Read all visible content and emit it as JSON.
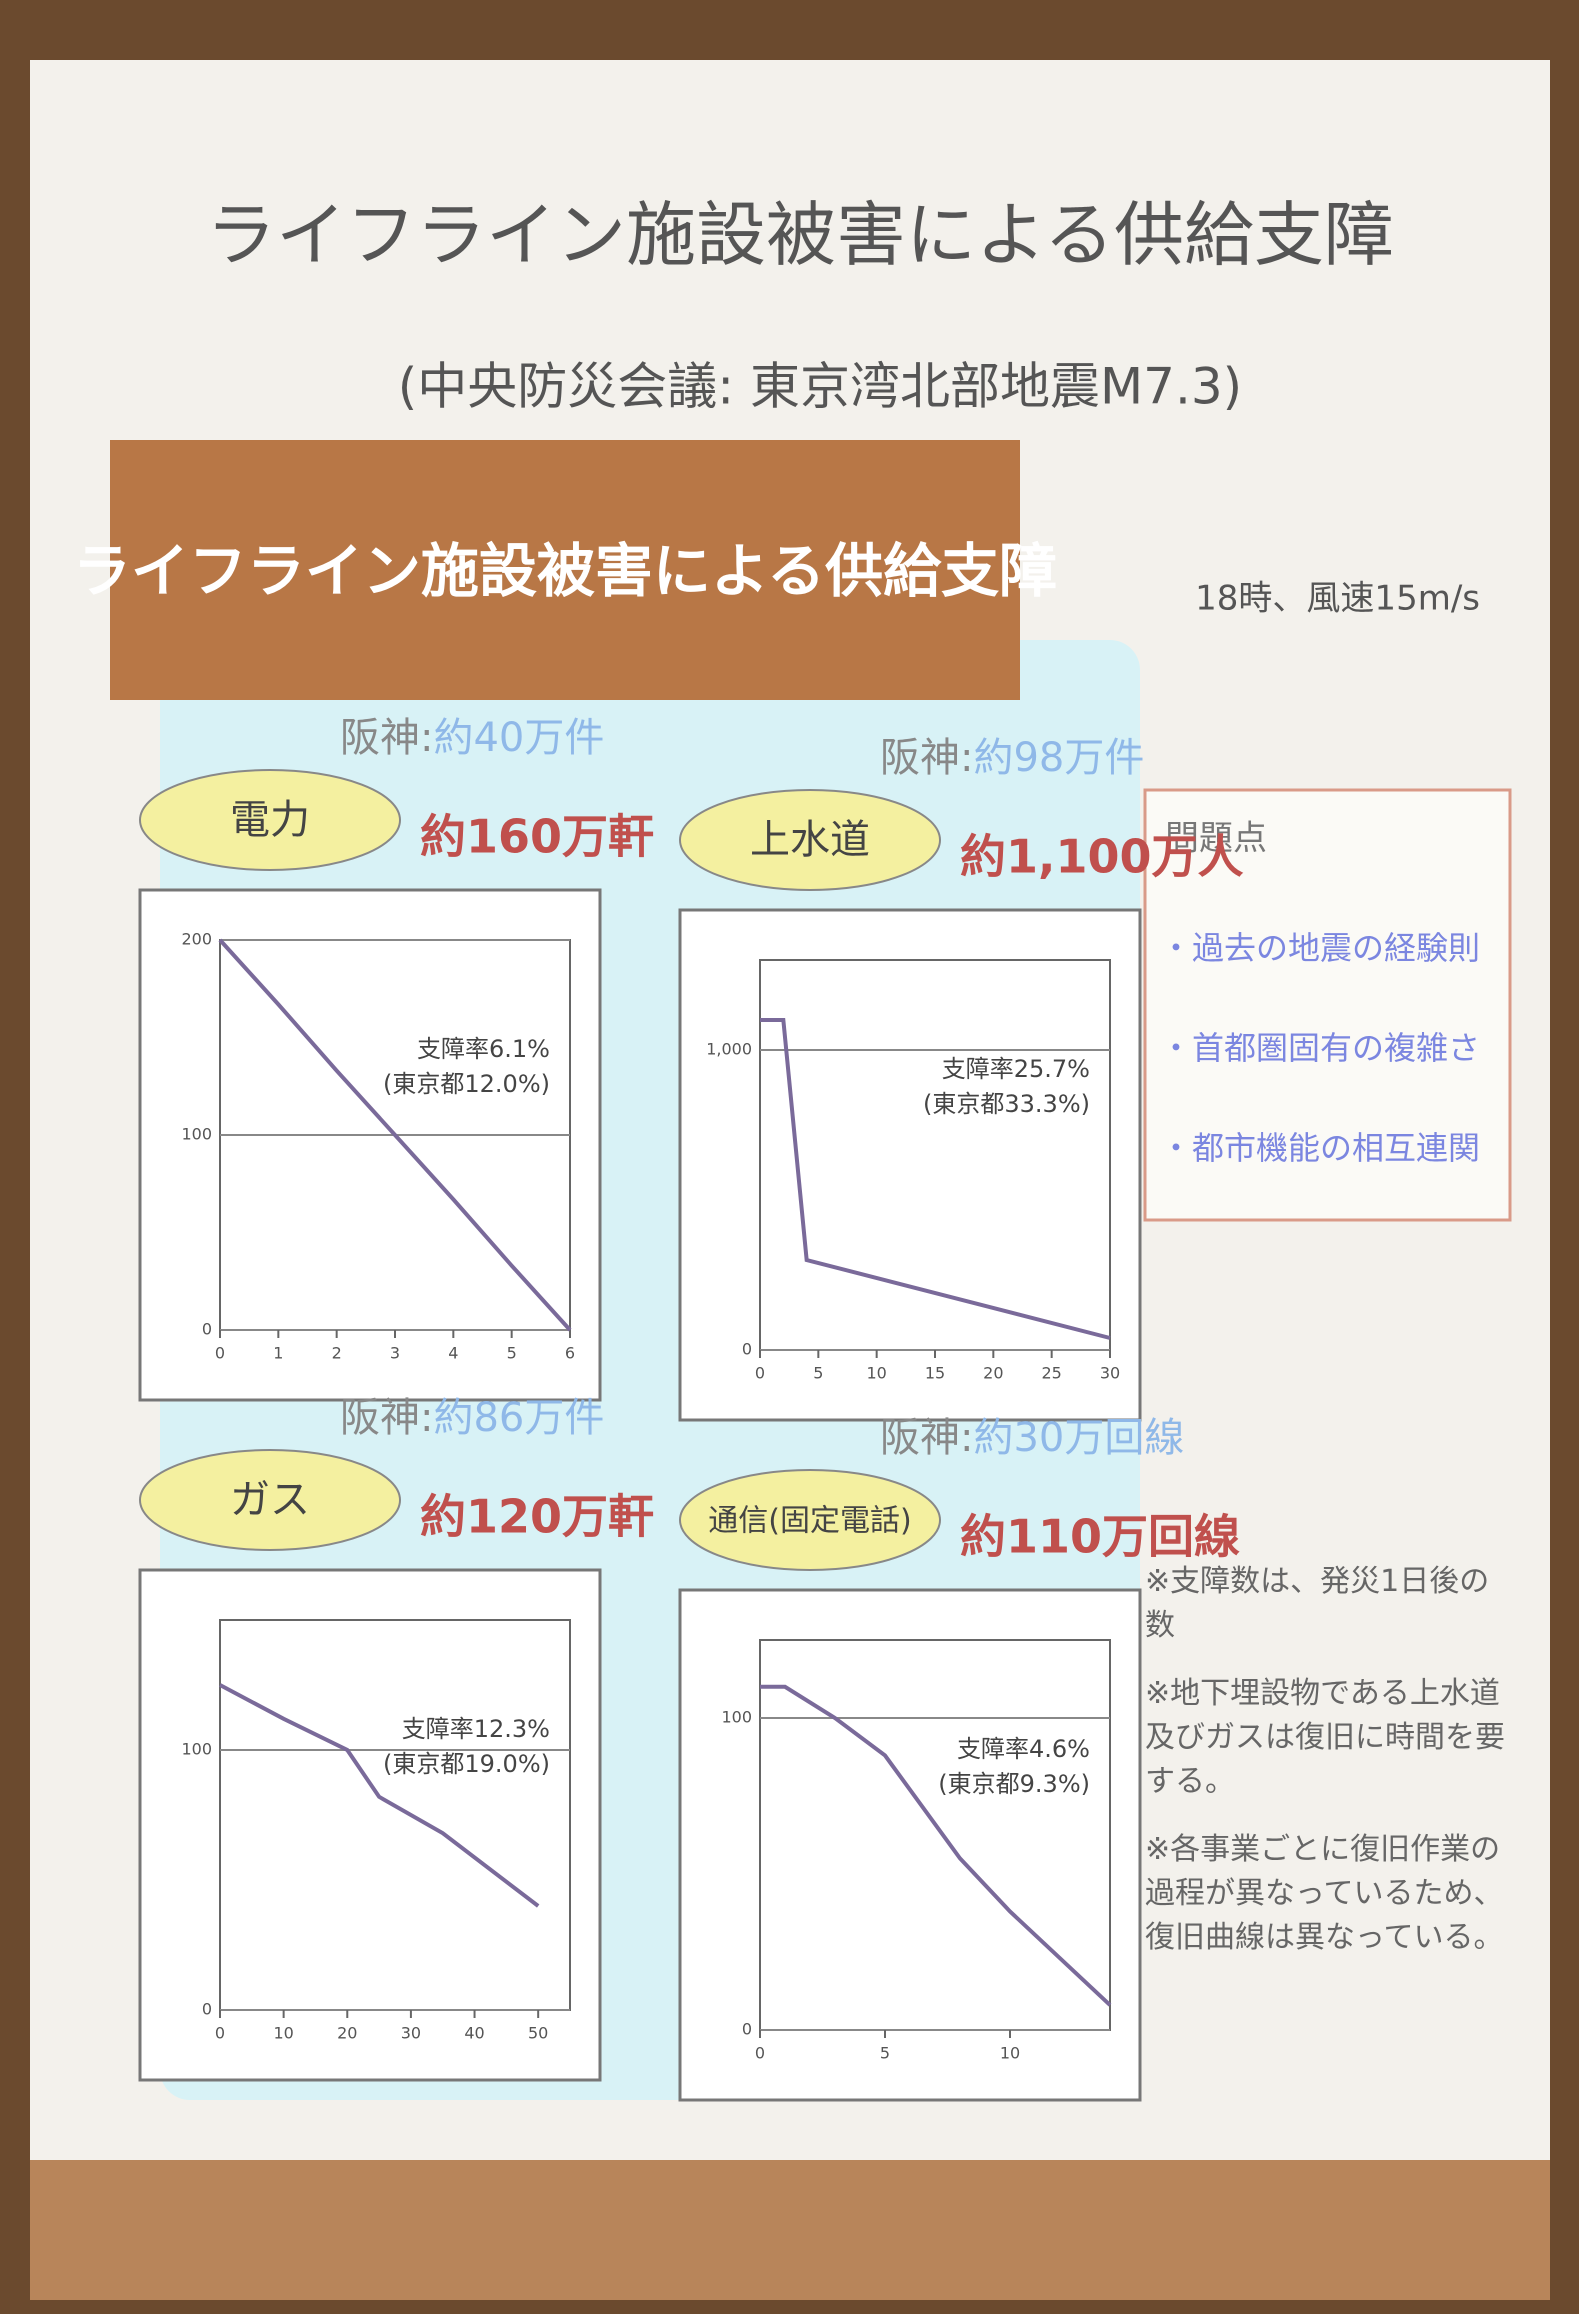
{
  "title": "ライフライン施設被害による供給支障",
  "subtitle": "(中央防災会議: 東京湾北部地震M7.3)",
  "banner": "ライフライン施設被害による供給支障",
  "condition": "18時、風速15m/s",
  "panels": [
    {
      "label": "電力",
      "hanshin_prefix": "阪神:",
      "hanshin": "約40万件",
      "total": "約160万軒",
      "rate": "支障率6.1%",
      "tokyo": "(東京都12.0%)",
      "chart": {
        "type": "line",
        "x": [
          0,
          1,
          2,
          3,
          4,
          5,
          6
        ],
        "y": [
          200,
          167,
          133,
          100,
          67,
          33,
          0
        ],
        "xlim": [
          0,
          6
        ],
        "ylim": [
          0,
          200
        ],
        "xticks": [
          0,
          1,
          2,
          3,
          4,
          5,
          6
        ],
        "yticks": [
          0,
          100,
          200
        ],
        "color": "#7a6a9a"
      }
    },
    {
      "label": "上水道",
      "hanshin_prefix": "阪神:",
      "hanshin": "約98万件",
      "total": "約1,100万人",
      "rate": "支障率25.7%",
      "tokyo": "(東京都33.3%)",
      "chart": {
        "type": "line",
        "x": [
          0,
          2,
          4,
          30
        ],
        "y": [
          1100,
          1100,
          300,
          40
        ],
        "xlim": [
          0,
          30
        ],
        "ylim": [
          0,
          1300
        ],
        "xticks": [
          0,
          5,
          10,
          15,
          20,
          25,
          30
        ],
        "yticks": [
          0,
          {
            "value": 1000,
            "label": "1,000"
          }
        ],
        "color": "#7a6a9a"
      }
    },
    {
      "label": "ガス",
      "hanshin_prefix": "阪神:",
      "hanshin": "約86万件",
      "total": "約120万軒",
      "rate": "支障率12.3%",
      "tokyo": "(東京都19.0%)",
      "chart": {
        "type": "line",
        "x": [
          0,
          10,
          20,
          25,
          35,
          50
        ],
        "y": [
          125,
          112,
          100,
          82,
          68,
          40
        ],
        "xlim": [
          0,
          55
        ],
        "ylim": [
          0,
          150
        ],
        "xticks": [
          0,
          10,
          20,
          30,
          40,
          50
        ],
        "yticks": [
          0,
          100
        ],
        "color": "#7a6a9a"
      }
    },
    {
      "label": "通信(固定電話)",
      "hanshin_prefix": "阪神:",
      "hanshin": "約30万回線",
      "total": "約110万回線",
      "rate": "支障率4.6%",
      "tokyo": "(東京都9.3%)",
      "chart": {
        "type": "line",
        "x": [
          0,
          1,
          3,
          5,
          8,
          10,
          14
        ],
        "y": [
          110,
          110,
          100,
          88,
          55,
          38,
          8
        ],
        "xlim": [
          0,
          14
        ],
        "ylim": [
          0,
          125
        ],
        "xticks": [
          0,
          5,
          10
        ],
        "yticks": [
          0,
          100
        ],
        "color": "#7a6a9a"
      }
    }
  ],
  "problems": {
    "title": "問題点",
    "items": [
      "・過去の地震の経験則",
      "・首都圏固有の複雑さ",
      "・都市機能の相互連関"
    ]
  },
  "notes": [
    "※支障数は、発災1日後の数",
    "※地下埋設物である上水道及びガスは復旧に時間を要する。",
    "※各事業ごとに復旧作業の過程が異なっているため、復旧曲線は異なっている。"
  ]
}
